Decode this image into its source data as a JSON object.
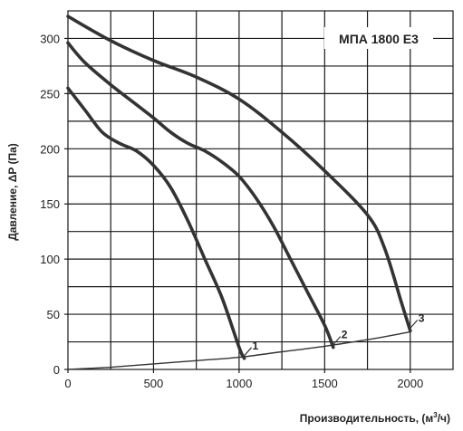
{
  "chart_data": {
    "type": "line",
    "title": "МПА 1800 Е3",
    "xlabel": "Производительность, (м³/ч)",
    "xlabel_parts": {
      "text": "Производительность, (м",
      "sup": "3",
      "tail": "/ч)"
    },
    "ylabel": "Давление, ΔP (Па)",
    "xlim": [
      0,
      2250
    ],
    "ylim": [
      0,
      325
    ],
    "xticks": [
      0,
      500,
      1000,
      1500,
      2000
    ],
    "xtick_labels": [
      "0",
      "500",
      "1000",
      "1500",
      "2000"
    ],
    "yticks": [
      0,
      50,
      100,
      150,
      200,
      250,
      300
    ],
    "ytick_labels": [
      "0",
      "50",
      "100",
      "150",
      "200",
      "250",
      "300"
    ],
    "xgrid_step": 250,
    "ygrid_step": 25,
    "grid": true,
    "legend": "none",
    "series": [
      {
        "name": "1",
        "points": [
          [
            0,
            255
          ],
          [
            100,
            235
          ],
          [
            200,
            215
          ],
          [
            300,
            205
          ],
          [
            400,
            198
          ],
          [
            500,
            185
          ],
          [
            600,
            165
          ],
          [
            700,
            135
          ],
          [
            800,
            100
          ],
          [
            900,
            65
          ],
          [
            1000,
            20
          ],
          [
            1030,
            10
          ]
        ]
      },
      {
        "name": "2",
        "points": [
          [
            0,
            296
          ],
          [
            100,
            278
          ],
          [
            250,
            258
          ],
          [
            400,
            240
          ],
          [
            500,
            228
          ],
          [
            600,
            215
          ],
          [
            700,
            205
          ],
          [
            800,
            198
          ],
          [
            900,
            188
          ],
          [
            1000,
            175
          ],
          [
            1100,
            155
          ],
          [
            1200,
            130
          ],
          [
            1300,
            100
          ],
          [
            1400,
            70
          ],
          [
            1500,
            40
          ],
          [
            1550,
            20
          ]
        ]
      },
      {
        "name": "3",
        "points": [
          [
            0,
            320
          ],
          [
            250,
            298
          ],
          [
            500,
            280
          ],
          [
            750,
            265
          ],
          [
            1000,
            245
          ],
          [
            1250,
            215
          ],
          [
            1500,
            180
          ],
          [
            1750,
            140
          ],
          [
            1850,
            110
          ],
          [
            1950,
            60
          ],
          [
            2000,
            35
          ]
        ]
      }
    ],
    "system_curve": {
      "points": [
        [
          0,
          0
        ],
        [
          250,
          2
        ],
        [
          500,
          5
        ],
        [
          750,
          8
        ],
        [
          1000,
          11
        ],
        [
          1250,
          16
        ],
        [
          1500,
          21
        ],
        [
          1750,
          27
        ],
        [
          2000,
          34
        ]
      ]
    }
  }
}
